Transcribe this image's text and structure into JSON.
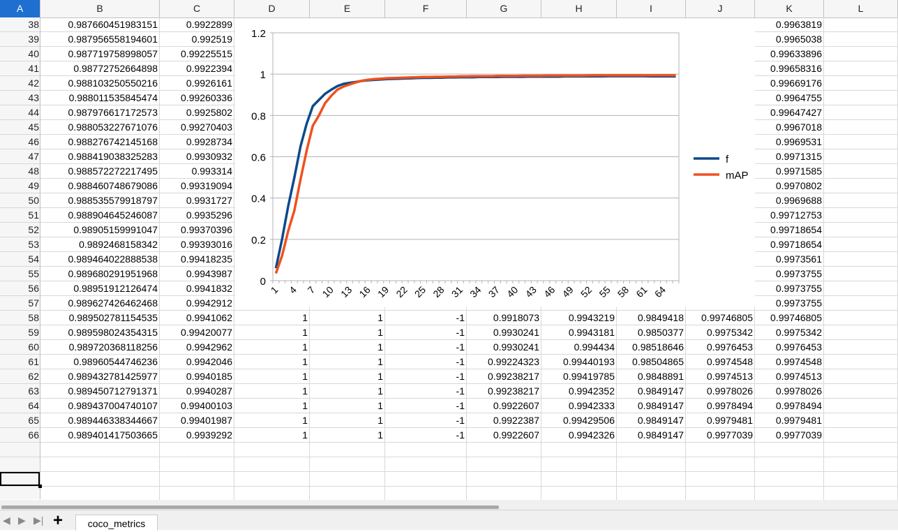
{
  "columns": [
    "A",
    "B",
    "C",
    "D",
    "E",
    "F",
    "G",
    "H",
    "I",
    "J",
    "K",
    "L"
  ],
  "selected_column": "A",
  "rows": [
    {
      "n": "38",
      "B": "0.987660451983151",
      "C": "0.9922899",
      "K": "0.9963819"
    },
    {
      "n": "39",
      "B": "0.987956558194601",
      "C": "0.992519",
      "K": "0.9965038"
    },
    {
      "n": "40",
      "B": "0.987719758998057",
      "C": "0.99225515",
      "K": "0.99633896"
    },
    {
      "n": "41",
      "B": "0.98772752664898",
      "C": "0.9922394",
      "K": "0.99658316"
    },
    {
      "n": "42",
      "B": "0.988103250550216",
      "C": "0.9926161",
      "K": "0.99669176"
    },
    {
      "n": "43",
      "B": "0.988011535845474",
      "C": "0.99260336",
      "K": "0.9964755"
    },
    {
      "n": "44",
      "B": "0.987976617172573",
      "C": "0.9925802",
      "K": "0.99647427"
    },
    {
      "n": "45",
      "B": "0.988053227671076",
      "C": "0.99270403",
      "K": "0.9967018"
    },
    {
      "n": "46",
      "B": "0.988276742145168",
      "C": "0.9928734",
      "K": "0.9969531"
    },
    {
      "n": "47",
      "B": "0.988419038325283",
      "C": "0.9930932",
      "K": "0.9971315"
    },
    {
      "n": "48",
      "B": "0.988572272217495",
      "C": "0.993314",
      "K": "0.9971585"
    },
    {
      "n": "49",
      "B": "0.988460748679086",
      "C": "0.99319094",
      "K": "0.9970802"
    },
    {
      "n": "50",
      "B": "0.988535579918797",
      "C": "0.9931727",
      "K": "0.9969688"
    },
    {
      "n": "51",
      "B": "0.988904645246087",
      "C": "0.9935296",
      "K": "0.99712753"
    },
    {
      "n": "52",
      "B": "0.98905159991047",
      "C": "0.99370396",
      "K": "0.99718654"
    },
    {
      "n": "53",
      "B": "0.9892468158342",
      "C": "0.99393016",
      "K": "0.99718654"
    },
    {
      "n": "54",
      "B": "0.989464022888538",
      "C": "0.99418235",
      "K": "0.9973561"
    },
    {
      "n": "55",
      "B": "0.989680291951968",
      "C": "0.9943987",
      "K": "0.9973755"
    },
    {
      "n": "56",
      "B": "0.98951912126474",
      "C": "0.9941832",
      "K": "0.9973755"
    },
    {
      "n": "57",
      "B": "0.989627426462468",
      "C": "0.9942912",
      "K": "0.9973755"
    },
    {
      "n": "58",
      "B": "0.989502781154535",
      "C": "0.9941062",
      "D": "1",
      "E": "1",
      "F": "-1",
      "G": "0.9918073",
      "H": "0.9943219",
      "I": "0.9849418",
      "J": "0.99746805",
      "K": "0.99746805"
    },
    {
      "n": "59",
      "B": "0.989598024354315",
      "C": "0.99420077",
      "D": "1",
      "E": "1",
      "F": "-1",
      "G": "0.9930241",
      "H": "0.9943181",
      "I": "0.9850377",
      "J": "0.9975342",
      "K": "0.9975342"
    },
    {
      "n": "60",
      "B": "0.989720368118256",
      "C": "0.9942962",
      "D": "1",
      "E": "1",
      "F": "-1",
      "G": "0.9930241",
      "H": "0.994434",
      "I": "0.98518646",
      "J": "0.9976453",
      "K": "0.9976453"
    },
    {
      "n": "61",
      "B": "0.98960544746236",
      "C": "0.9942046",
      "D": "1",
      "E": "1",
      "F": "-1",
      "G": "0.99224323",
      "H": "0.99440193",
      "I": "0.98504865",
      "J": "0.9974548",
      "K": "0.9974548"
    },
    {
      "n": "62",
      "B": "0.989432781425977",
      "C": "0.9940185",
      "D": "1",
      "E": "1",
      "F": "-1",
      "G": "0.99238217",
      "H": "0.99419785",
      "I": "0.9848891",
      "J": "0.9974513",
      "K": "0.9974513"
    },
    {
      "n": "63",
      "B": "0.989450712791371",
      "C": "0.9940287",
      "D": "1",
      "E": "1",
      "F": "-1",
      "G": "0.99238217",
      "H": "0.9942352",
      "I": "0.9849147",
      "J": "0.9978026",
      "K": "0.9978026"
    },
    {
      "n": "64",
      "B": "0.989437004740107",
      "C": "0.99400103",
      "D": "1",
      "E": "1",
      "F": "-1",
      "G": "0.9922607",
      "H": "0.9942333",
      "I": "0.9849147",
      "J": "0.9978494",
      "K": "0.9978494"
    },
    {
      "n": "65",
      "B": "0.989446338344667",
      "C": "0.99401987",
      "D": "1",
      "E": "1",
      "F": "-1",
      "G": "0.9922387",
      "H": "0.99429506",
      "I": "0.9849147",
      "J": "0.9979481",
      "K": "0.9979481"
    },
    {
      "n": "66",
      "B": "0.989401417503665",
      "C": "0.9939292",
      "D": "1",
      "E": "1",
      "F": "-1",
      "G": "0.9922607",
      "H": "0.9942326",
      "I": "0.9849147",
      "J": "0.9977039",
      "K": "0.9977039"
    },
    {
      "n": ""
    },
    {
      "n": ""
    },
    {
      "n": ""
    },
    {
      "n": ""
    }
  ],
  "chart_data": {
    "type": "line",
    "ylim": [
      0,
      1.2
    ],
    "yticks": [
      "0",
      "0.2",
      "0.4",
      "0.6",
      "0.8",
      "1",
      "1.2"
    ],
    "xticks": [
      "1",
      "4",
      "7",
      "10",
      "13",
      "16",
      "19",
      "22",
      "25",
      "28",
      "31",
      "34",
      "37",
      "40",
      "43",
      "46",
      "49",
      "52",
      "55",
      "58",
      "61",
      "64"
    ],
    "x_count": 66,
    "legend_position": "right",
    "series": [
      {
        "name": "f",
        "color": "#0b4a8b",
        "values": [
          0.06,
          0.2,
          0.36,
          0.5,
          0.65,
          0.76,
          0.845,
          0.875,
          0.905,
          0.925,
          0.942,
          0.953,
          0.958,
          0.962,
          0.967,
          0.97,
          0.972,
          0.974,
          0.976,
          0.977,
          0.978,
          0.979,
          0.98,
          0.981,
          0.982,
          0.982,
          0.983,
          0.983,
          0.984,
          0.984,
          0.985,
          0.985,
          0.985,
          0.986,
          0.986,
          0.986,
          0.986,
          0.987,
          0.987,
          0.987,
          0.987,
          0.988,
          0.988,
          0.988,
          0.988,
          0.988,
          0.988,
          0.989,
          0.989,
          0.989,
          0.989,
          0.989,
          0.989,
          0.989,
          0.99,
          0.99,
          0.99,
          0.99,
          0.99,
          0.99,
          0.99,
          0.989,
          0.989,
          0.989,
          0.989,
          0.989
        ]
      },
      {
        "name": "mAP",
        "color": "#f0501e",
        "values": [
          0.035,
          0.12,
          0.24,
          0.34,
          0.49,
          0.63,
          0.75,
          0.8,
          0.86,
          0.895,
          0.925,
          0.94,
          0.95,
          0.96,
          0.968,
          0.973,
          0.976,
          0.978,
          0.98,
          0.981,
          0.982,
          0.983,
          0.984,
          0.985,
          0.986,
          0.986,
          0.987,
          0.987,
          0.988,
          0.988,
          0.989,
          0.989,
          0.99,
          0.99,
          0.99,
          0.99,
          0.991,
          0.991,
          0.991,
          0.991,
          0.992,
          0.992,
          0.992,
          0.992,
          0.993,
          0.993,
          0.993,
          0.993,
          0.993,
          0.993,
          0.993,
          0.994,
          0.994,
          0.994,
          0.994,
          0.994,
          0.994,
          0.994,
          0.994,
          0.994,
          0.994,
          0.994,
          0.994,
          0.994,
          0.994,
          0.994
        ]
      }
    ]
  },
  "sheet_tab": "coco_metrics"
}
